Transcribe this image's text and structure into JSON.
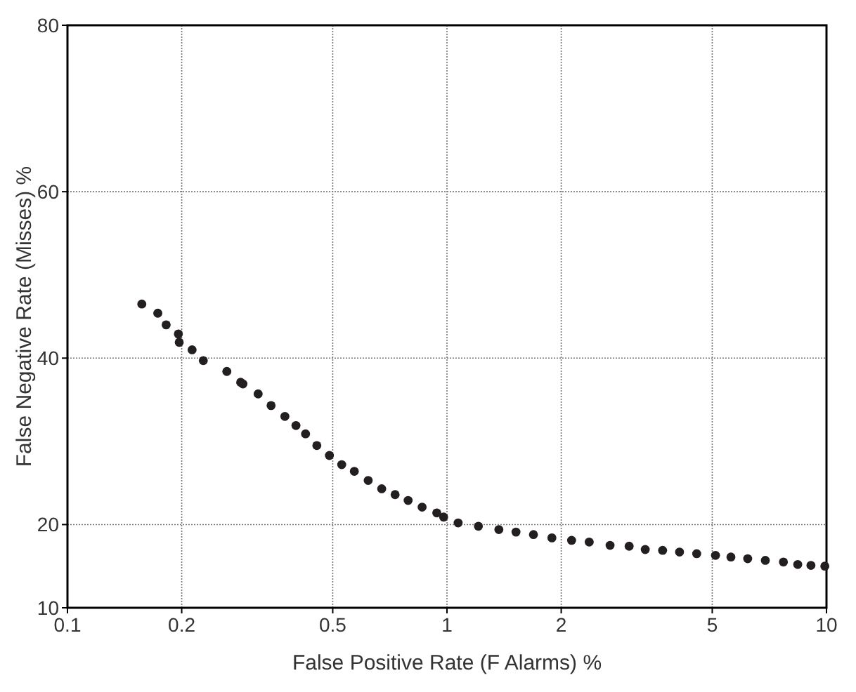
{
  "chart_data": {
    "type": "scatter",
    "xlabel": "False Positive Rate (F Alarms) %",
    "ylabel": "False Negative Rate (Misses) %",
    "log": "x",
    "grid": true,
    "marker": "circle",
    "xlim": [
      0.1,
      10
    ],
    "xticks": [
      0.1,
      0.2,
      0.5,
      1,
      2,
      5,
      10
    ],
    "ylim": [
      10,
      80
    ],
    "yticks": [
      10,
      20,
      40,
      60,
      80
    ],
    "series": [
      {
        "color": "#231f20",
        "x": [
          0.157,
          0.173,
          0.182,
          0.196,
          0.197,
          0.213,
          0.228,
          0.263,
          0.286,
          0.29,
          0.318,
          0.344,
          0.374,
          0.4,
          0.424,
          0.454,
          0.49,
          0.528,
          0.57,
          0.62,
          0.673,
          0.73,
          0.79,
          0.86,
          0.94,
          0.98,
          1.07,
          1.21,
          1.37,
          1.52,
          1.69,
          1.89,
          2.13,
          2.37,
          2.69,
          3.02,
          3.33,
          3.7,
          4.1,
          4.55,
          5.1,
          5.6,
          6.2,
          6.9,
          7.7,
          8.4,
          9.1,
          9.9
        ],
        "values": [
          46.5,
          45.4,
          44,
          42.9,
          41.9,
          41,
          39.7,
          38.4,
          37.1,
          36.9,
          35.7,
          34.3,
          33,
          31.9,
          30.9,
          29.5,
          28.3,
          27.2,
          26.4,
          25.3,
          24.3,
          23.6,
          22.9,
          22.1,
          21.4,
          20.9,
          20.2,
          19.8,
          19.4,
          19.1,
          18.8,
          18.4,
          18.1,
          17.9,
          17.5,
          17.4,
          17,
          16.9,
          16.7,
          16.5,
          16.3,
          16.1,
          15.9,
          15.7,
          15.5,
          15.2,
          15.1,
          15
        ]
      }
    ]
  }
}
